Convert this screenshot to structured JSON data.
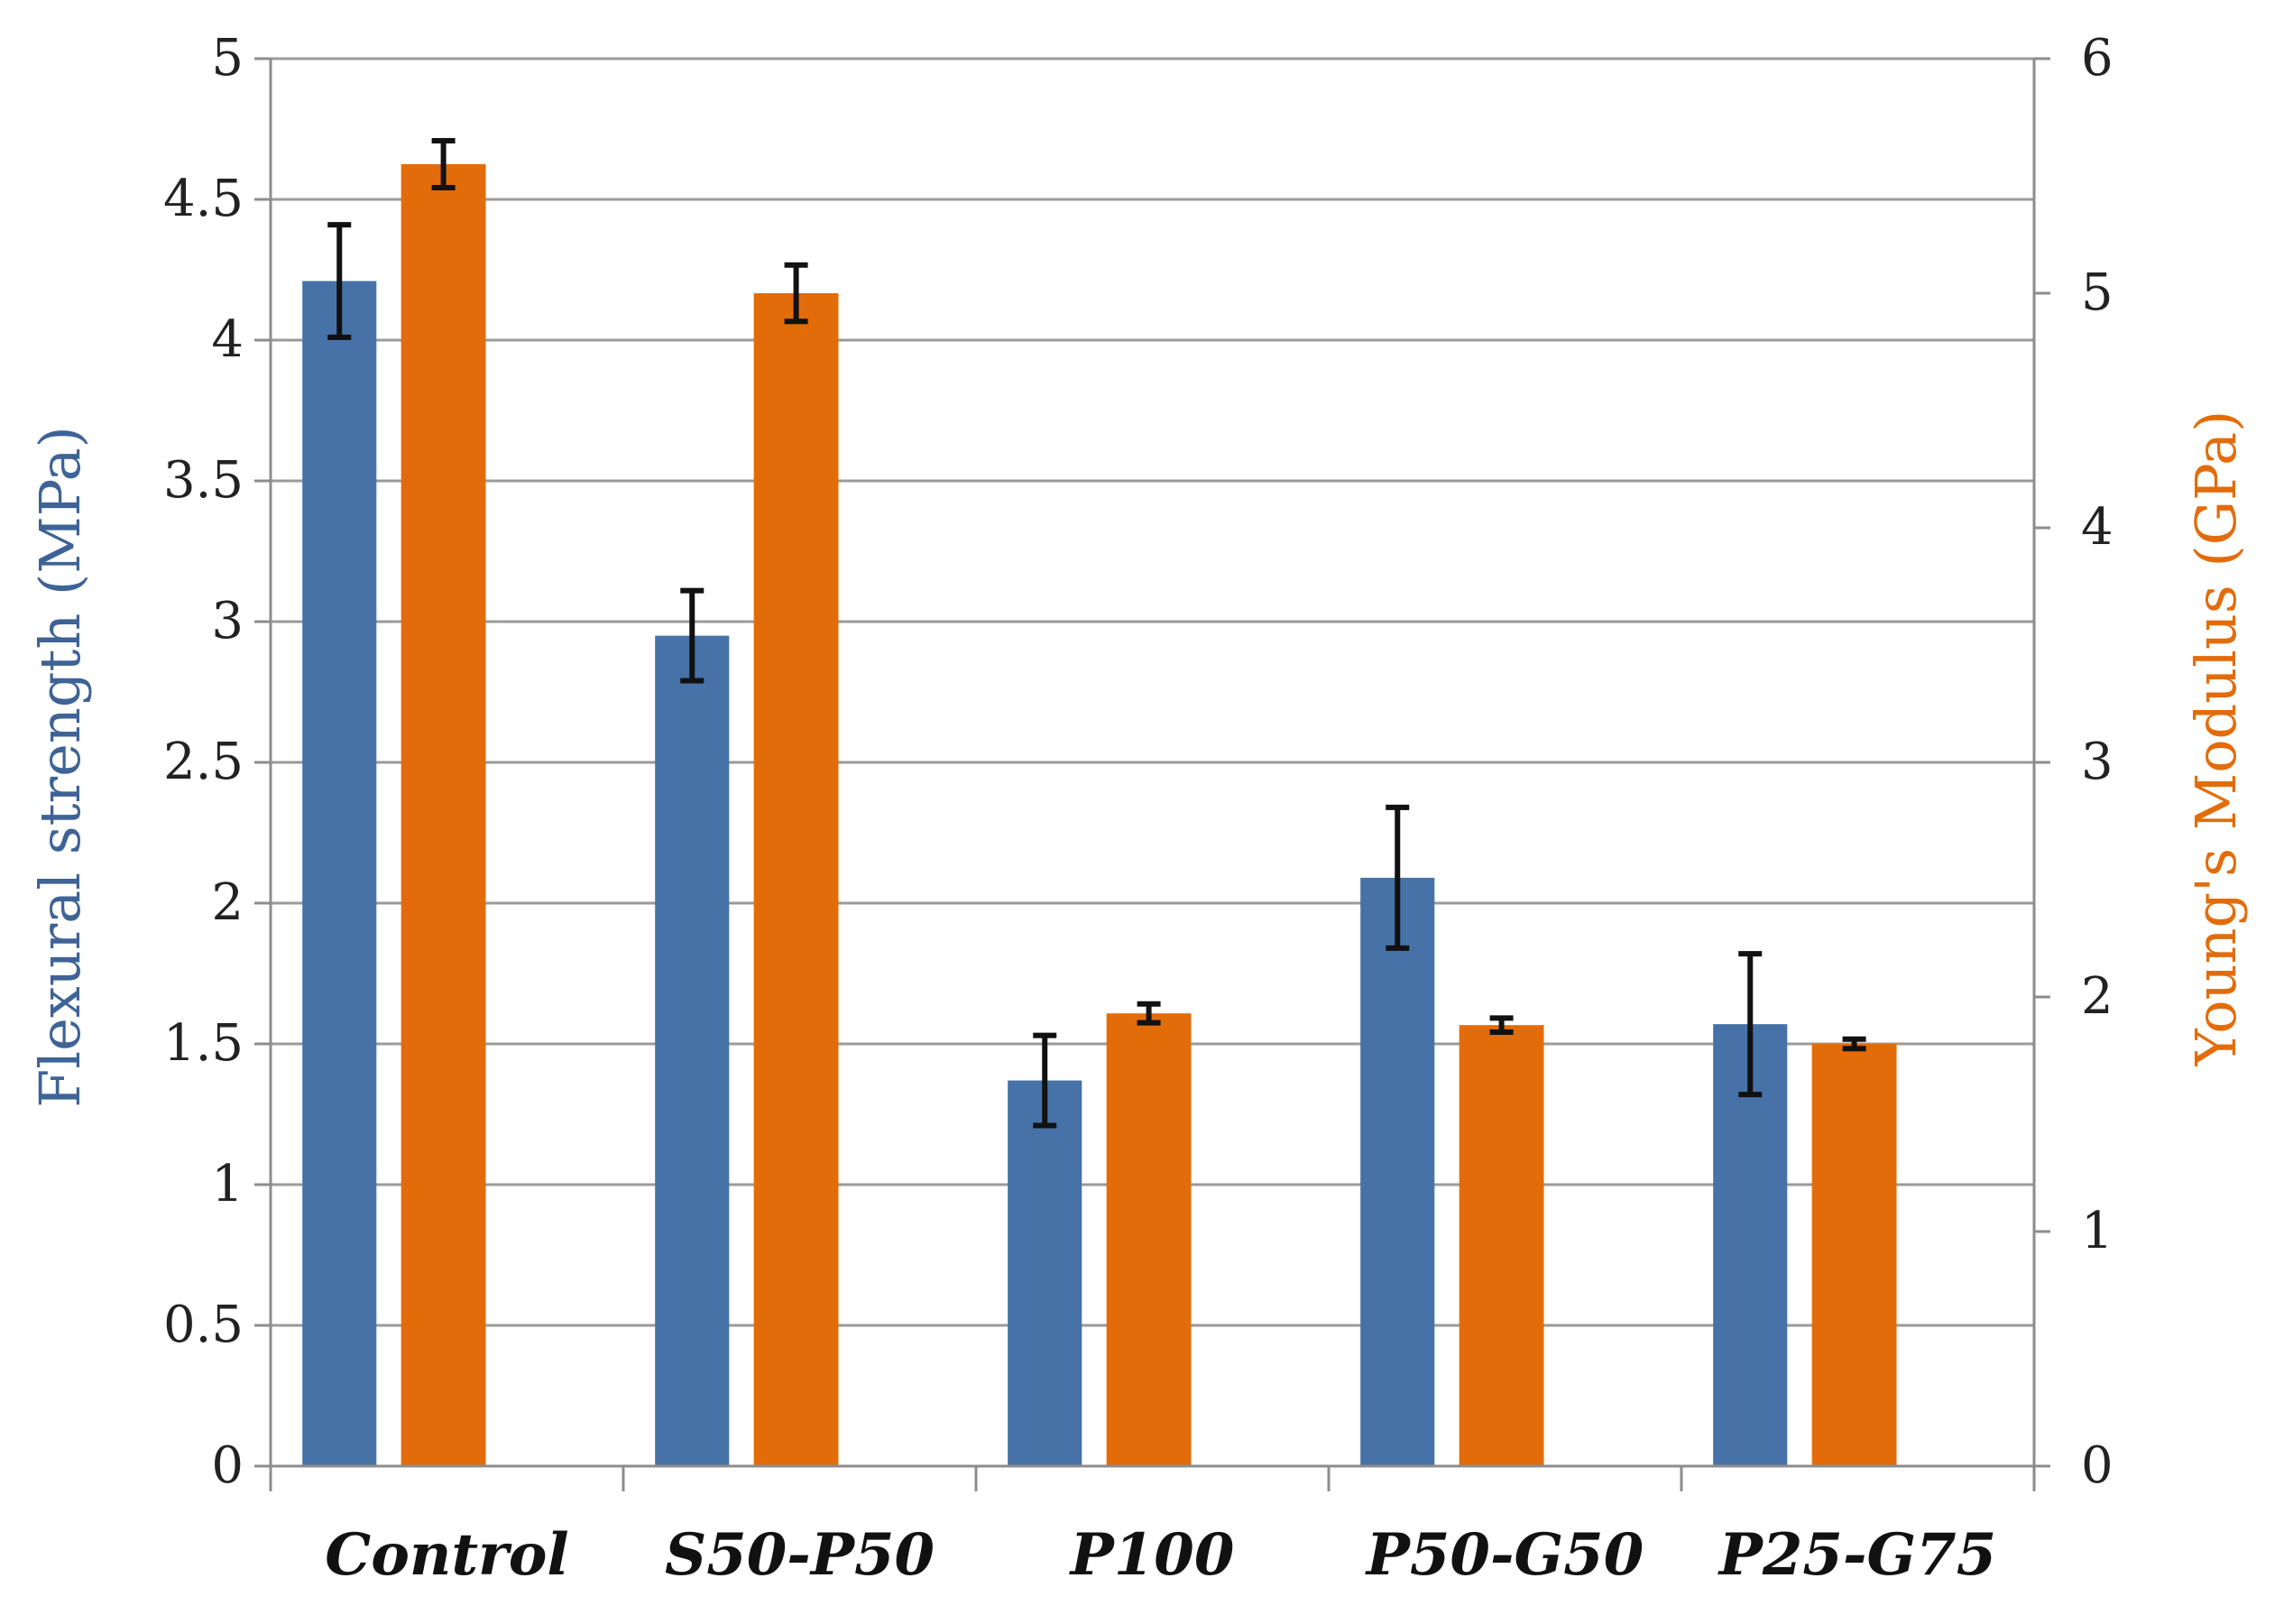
{
  "chart_data": {
    "type": "bar",
    "title": "",
    "categories": [
      "Control",
      "S50-P50",
      "P100",
      "P50-G50",
      "P25-G75"
    ],
    "series": [
      {
        "name": "Flexural strength",
        "axis": "left",
        "color": "#4672A8",
        "values": [
          4.21,
          2.95,
          1.37,
          2.09,
          1.57
        ],
        "errors": [
          0.2,
          0.16,
          0.16,
          0.25,
          0.25
        ]
      },
      {
        "name": "Young's Modulus",
        "axis": "right",
        "color": "#E36C0A",
        "values": [
          5.55,
          5.0,
          1.93,
          1.88,
          1.8
        ],
        "errors": [
          0.1,
          0.12,
          0.04,
          0.03,
          0.02
        ]
      }
    ],
    "y_left": {
      "label": "Flexural strength (MPa)",
      "color": "#3E6396",
      "ylim": [
        0,
        5
      ],
      "ticks": [
        "0",
        "0.5",
        "1",
        "1.5",
        "2",
        "2.5",
        "3",
        "3.5",
        "4",
        "4.5",
        "5"
      ]
    },
    "y_right": {
      "label": "Young's Modulus (GPa)",
      "color": "#E36C0A",
      "ylim": [
        0,
        6
      ],
      "ticks": [
        "0",
        "1",
        "2",
        "3",
        "4",
        "5",
        "6"
      ]
    },
    "grid": true,
    "xlabel": ""
  }
}
